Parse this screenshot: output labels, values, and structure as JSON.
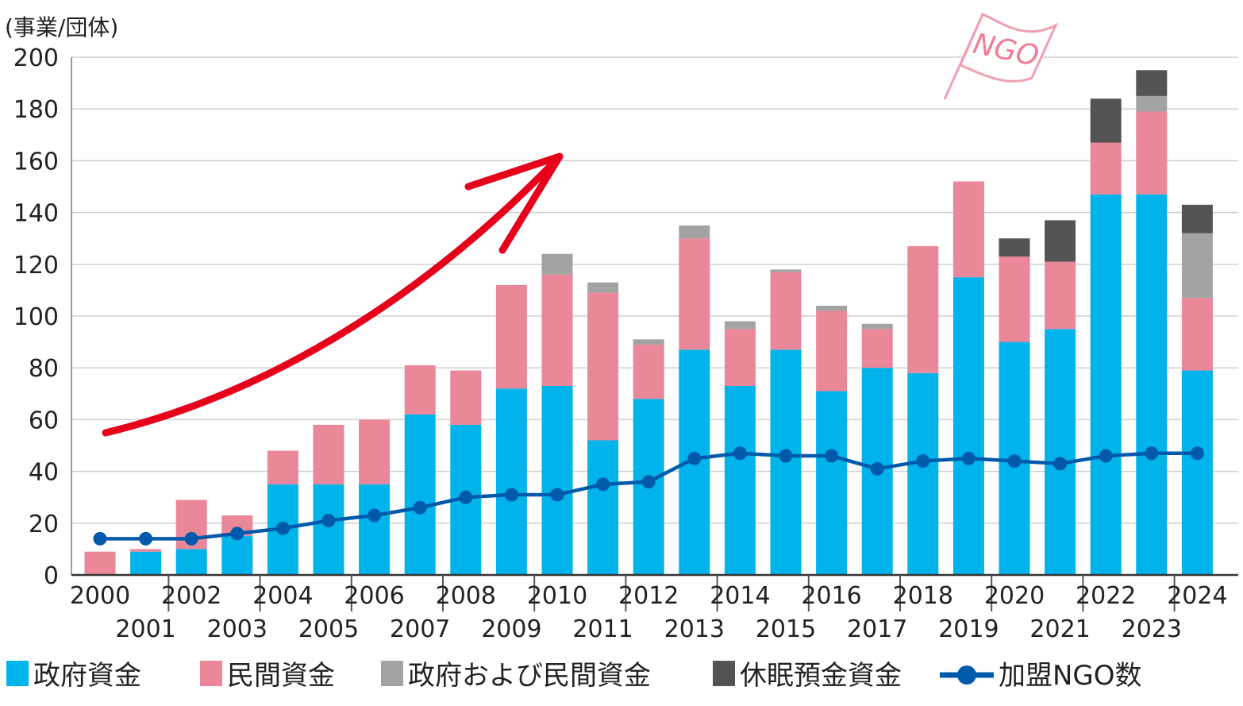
{
  "chart_data": {
    "type": "bar",
    "stacked": true,
    "unit_label": "(事業/団体)",
    "ylim": [
      0,
      200
    ],
    "yticks": [
      0,
      20,
      40,
      60,
      80,
      100,
      120,
      140,
      160,
      180,
      200
    ],
    "grid": true,
    "categories": [
      "2000",
      "2001",
      "2002",
      "2003",
      "2004",
      "2005",
      "2006",
      "2007",
      "2008",
      "2009",
      "2010",
      "2011",
      "2012",
      "2013",
      "2014",
      "2015",
      "2016",
      "2017",
      "2018",
      "2019",
      "2020",
      "2021",
      "2022",
      "2023",
      "2024"
    ],
    "series": [
      {
        "name": "政府資金",
        "color": "#00b3ea",
        "values": [
          0,
          9,
          10,
          15,
          35,
          35,
          35,
          62,
          58,
          72,
          73,
          52,
          68,
          87,
          73,
          87,
          71,
          80,
          78,
          115,
          90,
          95,
          147,
          147,
          79
        ]
      },
      {
        "name": "民間資金",
        "color": "#ea8799",
        "values": [
          9,
          1,
          19,
          8,
          13,
          23,
          25,
          19,
          21,
          40,
          43,
          57,
          21,
          43,
          22,
          30,
          31,
          15,
          49,
          37,
          33,
          26,
          20,
          32,
          28
        ]
      },
      {
        "name": "政府および民間資金",
        "color": "#a3a3a3",
        "values": [
          0,
          0,
          0,
          0,
          0,
          0,
          0,
          0,
          0,
          0,
          8,
          4,
          2,
          5,
          3,
          1,
          2,
          2,
          0,
          0,
          0,
          0,
          0,
          6,
          25
        ]
      },
      {
        "name": "休眠預金資金",
        "color": "#545454",
        "values": [
          0,
          0,
          0,
          0,
          0,
          0,
          0,
          0,
          0,
          0,
          0,
          0,
          0,
          0,
          0,
          0,
          0,
          0,
          0,
          0,
          7,
          16,
          17,
          10,
          11
        ]
      }
    ],
    "line": {
      "name": "加盟NGO数",
      "color": "#005aab",
      "values": [
        14,
        14,
        14,
        16,
        18,
        21,
        23,
        26,
        30,
        31,
        31,
        35,
        36,
        45,
        47,
        46,
        46,
        41,
        44,
        45,
        44,
        43,
        46,
        47,
        47
      ]
    },
    "legend_position": "bottom",
    "annotations": {
      "flag_text": "NGO",
      "arrow": "upward trend"
    }
  }
}
